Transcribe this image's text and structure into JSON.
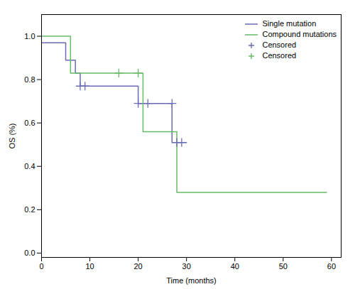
{
  "chart_data": {
    "type": "line",
    "xlabel": "Time (months)",
    "ylabel": "OS (%)",
    "xlim": [
      0,
      62
    ],
    "ylim": [
      -0.02,
      1.1
    ],
    "xticks": [
      0,
      10,
      20,
      30,
      40,
      50,
      60
    ],
    "yticks": [
      {
        "value": 0,
        "label": "0.0"
      },
      0.2,
      0.4,
      0.6,
      0.8,
      {
        "value": 1,
        "label": "1.0"
      }
    ],
    "grid": false,
    "legend": "upper right",
    "series": [
      {
        "name": "Single mutation",
        "type": "step",
        "color": "#6B6BB5",
        "x": [
          0,
          5,
          7,
          8,
          20,
          22,
          27,
          30
        ],
        "values": [
          0.97,
          0.89,
          0.83,
          0.77,
          0.69,
          0.69,
          0.51,
          0.51
        ]
      },
      {
        "name": "Compound mutations",
        "type": "step",
        "color": "#66BB66",
        "x": [
          0,
          6,
          21,
          28,
          38,
          59
        ],
        "values": [
          1.0,
          0.83,
          0.56,
          0.28,
          0.28,
          0.28
        ]
      },
      {
        "name": "Censored",
        "type": "scatter",
        "marker": "+",
        "color": "#6B6BB5",
        "x": [
          8,
          9,
          20,
          22,
          27,
          28,
          29
        ],
        "values": [
          0.77,
          0.77,
          0.69,
          0.69,
          0.69,
          0.51,
          0.51
        ]
      },
      {
        "name": "Censored",
        "type": "scatter",
        "marker": "+",
        "color": "#66BB66",
        "x": [
          16,
          20
        ],
        "values": [
          0.83,
          0.83
        ]
      }
    ]
  }
}
